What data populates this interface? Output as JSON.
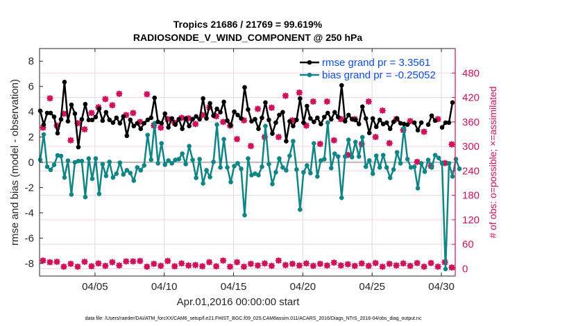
{
  "chart_data": {
    "type": "line",
    "title_line1": "Tropics 21686 / 21769 = 99.619%",
    "title_line2": "RADIOSONDE_V_WIND_COMPONENT @ 250 hPa",
    "xlabel": "Apr.01,2016 00:00:00 start",
    "ylabel_left": "rmse and bias (model - observation)",
    "ylabel_right": "# of obs: o=possible; ×=assimilated",
    "footnote": "data file: /Users/raeder/DAI/ATM_forcXX/CAM6_setup/f.e21.FHIST_BGC.f09_025.CAM6assim.011/ACARS_2016/Diags_NTrS_2016-04/obs_diag_output.nc",
    "x_unit": "days since Apr.01,2016 00:00:00",
    "xlim": [
      0,
      30
    ],
    "x_ticks": [
      {
        "value": 4,
        "label": "04/05"
      },
      {
        "value": 9,
        "label": "04/10"
      },
      {
        "value": 14,
        "label": "04/15"
      },
      {
        "value": 19,
        "label": "04/20"
      },
      {
        "value": 24,
        "label": "04/25"
      },
      {
        "value": 29,
        "label": "04/30"
      }
    ],
    "ylim_left": [
      -9,
      9
    ],
    "y_ticks_left": [
      -8,
      -6,
      -4,
      -2,
      0,
      2,
      4,
      6,
      8
    ],
    "ylim_right": [
      -18,
      540
    ],
    "y_ticks_right": [
      0,
      60,
      120,
      180,
      240,
      300,
      360,
      420,
      480
    ],
    "grid": true,
    "legend_position": "top-right",
    "colors": {
      "rmse": "#000000",
      "bias": "#0f8585",
      "counts": "#d0115b",
      "zero_line": "#bdbdbd",
      "legend_text": "#0b4ee6"
    },
    "series": [
      {
        "name": "rmse grand pr = 3.3561",
        "axis": "left",
        "x_start": 0.0,
        "x_step": 0.25,
        "values": [
          4.07,
          2.98,
          3.9,
          3.9,
          3.6,
          2.3,
          3.4,
          6.35,
          3.25,
          4.55,
          3.85,
          1.2,
          3.4,
          4.6,
          3.35,
          3.35,
          3.58,
          4.23,
          3.3,
          3.96,
          3.36,
          3.14,
          3.52,
          3.09,
          3.63,
          2.1,
          3.36,
          2.87,
          3.09,
          2.65,
          3.09,
          3.36,
          3.52,
          5.1,
          3.2,
          3.09,
          3.85,
          2.76,
          3.47,
          2.98,
          3.41,
          2.65,
          3.47,
          2.87,
          3.42,
          3.63,
          3.41,
          5.05,
          3.47,
          4.67,
          3.69,
          4.23,
          3.96,
          4.78,
          3.3,
          2.92,
          4.0,
          3.74,
          3.47,
          5.93,
          4.18,
          3.25,
          3.41,
          2.65,
          3.52,
          4.73,
          3.36,
          2.27,
          3.14,
          3.74,
          3.96,
          1.67,
          3.25,
          2.87,
          3.36,
          5.05,
          3.14,
          4.45,
          3.47,
          3.2,
          3.52,
          3.03,
          3.58,
          3.9,
          3.41,
          3.96,
          3.58,
          6.09,
          3.25,
          3.74,
          3.41,
          3.36,
          3.03,
          4.4,
          3.47,
          2.32,
          3.47,
          2.81,
          3.36,
          3.03,
          3.14,
          2.65,
          3.2,
          3.47,
          3.09,
          3.03,
          2.98,
          null,
          3.14,
          2.54,
          3.14,
          null,
          2.98,
          3.69,
          3.3,
          null,
          2.76,
          3.14,
          3.14,
          4.73
        ]
      },
      {
        "name": "bias grand pr = -0.25052",
        "axis": "left",
        "x_start": 0.0,
        "x_step": 0.25,
        "values": [
          0.2,
          2.2,
          -0.35,
          -0.6,
          -0.2,
          0.55,
          0.5,
          -1.2,
          0.13,
          -2.55,
          0.0,
          0.1,
          0.1,
          -2.75,
          0.3,
          -1.3,
          0.3,
          -2.5,
          -0.15,
          -1.07,
          0.03,
          -1.2,
          -0.9,
          -0.03,
          -0.96,
          -0.63,
          -0.85,
          -1.45,
          -0.41,
          -0.63,
          -0.25,
          2.16,
          0.2,
          3.09,
          -0.08,
          1.5,
          -0.19,
          0.14,
          -0.08,
          0.19,
          0.25,
          0.68,
          -0.14,
          1.28,
          0.19,
          -1.23,
          0.25,
          -1.67,
          -0.63,
          -1.17,
          0.03,
          2.98,
          -0.41,
          1.83,
          -0.41,
          -1.56,
          -0.3,
          -0.08,
          -0.52,
          -4.18,
          0.3,
          -1.01,
          -0.9,
          -1.01,
          -0.35,
          2.87,
          -0.14,
          -1.72,
          -0.79,
          0.3,
          -0.41,
          -0.63,
          0.52,
          1.67,
          -0.57,
          -3.74,
          -0.79,
          -0.25,
          -0.85,
          1.5,
          -1.12,
          0.14,
          0.25,
          3.14,
          -0.46,
          0.68,
          0.46,
          -2.81,
          0.46,
          1.78,
          0.41,
          1.61,
          0.46,
          1.99,
          -0.35,
          0.14,
          -0.9,
          0.52,
          -0.41,
          0.57,
          -0.41,
          -1.23,
          -0.57,
          0.79,
          -0.08,
          2.7,
          0.25,
          -0.41,
          -0.35,
          -2.05,
          -0.08,
          -0.74,
          0.19,
          -0.41,
          0.57,
          0.35,
          -0.08,
          -8.44,
          -0.08,
          -1.12,
          0.25,
          -0.52
        ]
      },
      {
        "name": "obs possible",
        "axis": "right",
        "marker": "o",
        "x_start": 0.0,
        "x_step": 0.5,
        "values": [
          346,
          418,
          351,
          380,
          315,
          357,
          342,
          382,
          396,
          416,
          401,
          429,
          377,
          382,
          360,
          428,
          351,
          346,
          367,
          358,
          370,
          369,
          355,
          377,
          396,
          374,
          360,
          351,
          318,
          364,
          301,
          392,
          323,
          395,
          323,
          424,
          364,
          432,
          351,
          410,
          306,
          410,
          315,
          367,
          279,
          367,
          306,
          410,
          323,
          388,
          308,
          367,
          340,
          362,
          262,
          336,
          252,
          367,
          259,
          305
        ]
      },
      {
        "name": "obs assimilated",
        "axis": "right",
        "marker": "x",
        "x_start": 0.0,
        "x_step": 0.5,
        "values": [
          20,
          16,
          17,
          5,
          12,
          5,
          17,
          6,
          13,
          7,
          16,
          8,
          18,
          18,
          19,
          5,
          12,
          7,
          19,
          6,
          13,
          8,
          9,
          6,
          16,
          6,
          20,
          5,
          16,
          5,
          12,
          8,
          13,
          7,
          20,
          9,
          12,
          8,
          13,
          7,
          12,
          8,
          15,
          8,
          11,
          7,
          13,
          7,
          14,
          5,
          12,
          8,
          13,
          7,
          14,
          5,
          14,
          5,
          16,
          3
        ]
      }
    ]
  }
}
